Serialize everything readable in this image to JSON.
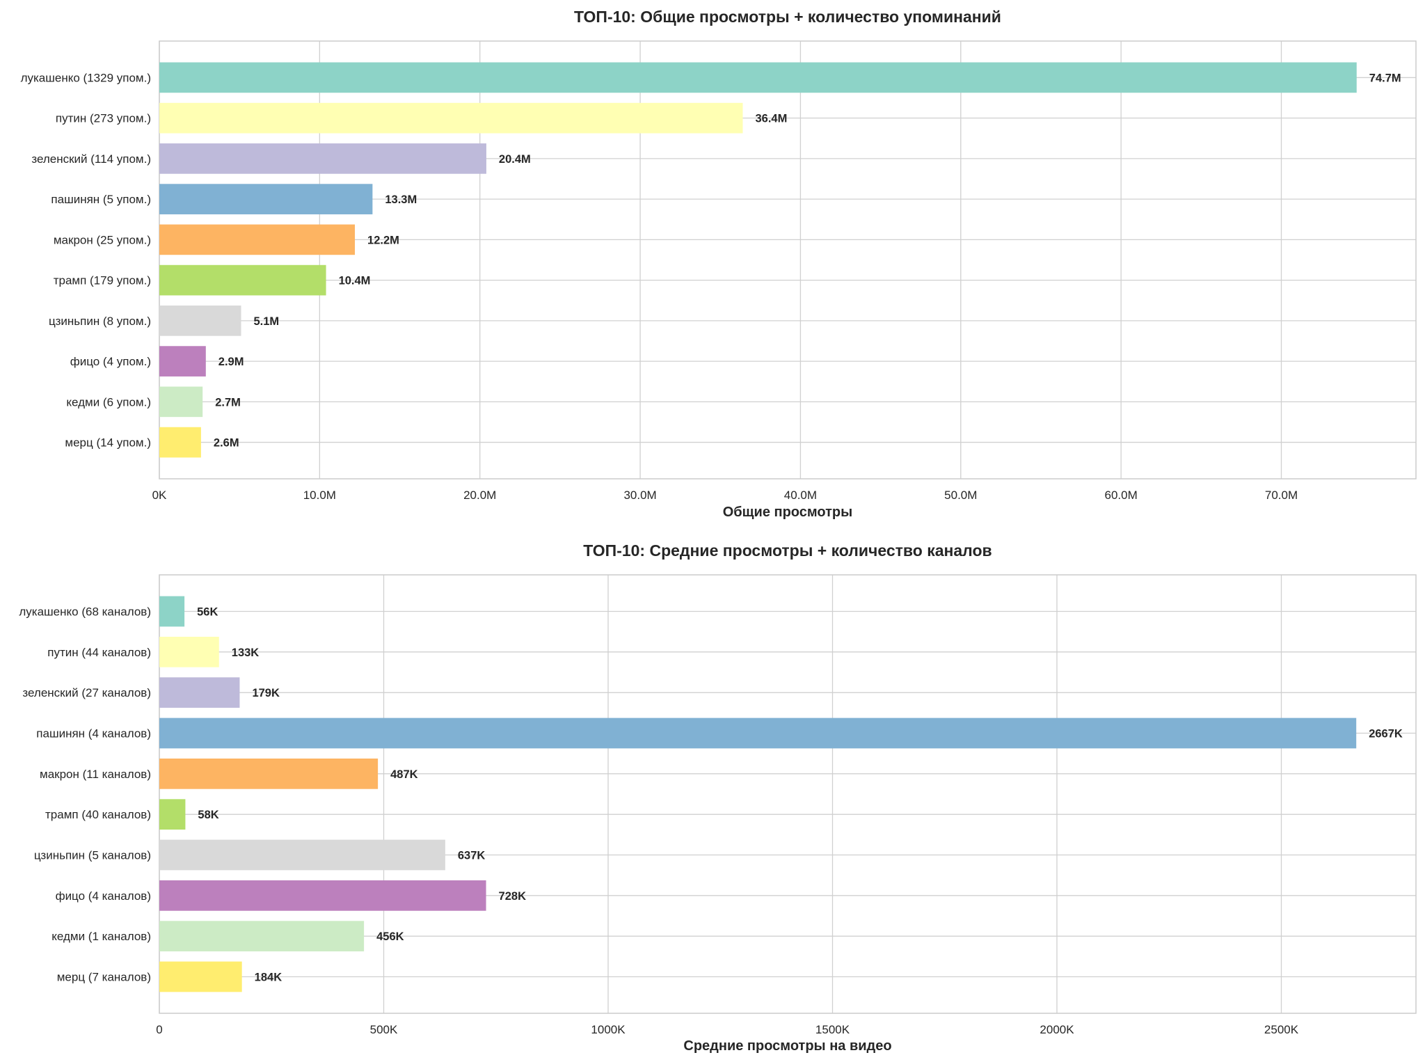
{
  "chart_data": [
    {
      "type": "bar",
      "orientation": "horizontal",
      "title": "ТОП-10: Общие просмотры + количество упоминаний",
      "xlabel": "Общие просмотры",
      "ylabel": "",
      "categories": [
        "лукашенко (1329 упом.)",
        "путин (273 упом.)",
        "зеленский (114 упом.)",
        "пашинян (5 упом.)",
        "макрон (25 упом.)",
        "трамп (179 упом.)",
        "цзиньпин (8 упом.)",
        "фицо (4 упом.)",
        "кедми (6 упом.)",
        "мерц (14 упом.)"
      ],
      "values": [
        74.7,
        36.4,
        20.4,
        13.3,
        12.2,
        10.4,
        5.1,
        2.9,
        2.7,
        2.6
      ],
      "value_unit": "M",
      "data_labels": [
        "74.7M",
        "36.4M",
        "20.4M",
        "13.3M",
        "12.2M",
        "10.4M",
        "5.1M",
        "2.9M",
        "2.7M",
        "2.6M"
      ],
      "xlim": [
        0,
        78.4
      ],
      "xticks": [
        0,
        10,
        20,
        30,
        40,
        50,
        60,
        70
      ],
      "xtick_labels": [
        "0K",
        "10.0M",
        "20.0M",
        "30.0M",
        "40.0M",
        "50.0M",
        "60.0M",
        "70.0M"
      ],
      "grid": true
    },
    {
      "type": "bar",
      "orientation": "horizontal",
      "title": "ТОП-10: Средние просмотры + количество каналов",
      "xlabel": "Средние просмотры на видео",
      "ylabel": "",
      "categories": [
        "лукашенко (68 каналов)",
        "путин (44 каналов)",
        "зеленский (27 каналов)",
        "пашинян (4 каналов)",
        "макрон (11 каналов)",
        "трамп (40 каналов)",
        "цзиньпин (5 каналов)",
        "фицо (4 каналов)",
        "кедми (1 каналов)",
        "мерц (7 каналов)"
      ],
      "values": [
        56,
        133,
        179,
        2667,
        487,
        58,
        637,
        728,
        456,
        184
      ],
      "value_unit": "K",
      "data_labels": [
        "56K",
        "133K",
        "179K",
        "2667K",
        "487K",
        "58K",
        "637K",
        "728K",
        "456K",
        "184K"
      ],
      "xlim": [
        0,
        2800
      ],
      "xticks": [
        0,
        500,
        1000,
        1500,
        2000,
        2500
      ],
      "xtick_labels": [
        "0",
        "500K",
        "1000K",
        "1500K",
        "2000K",
        "2500K"
      ],
      "grid": true
    }
  ],
  "colors": [
    "#8dd3c7",
    "#ffffb3",
    "#bebada",
    "#80b1d3",
    "#fdb462",
    "#b3de69",
    "#d9d9d9",
    "#bc80bd",
    "#ccebc5",
    "#ffed6f"
  ]
}
